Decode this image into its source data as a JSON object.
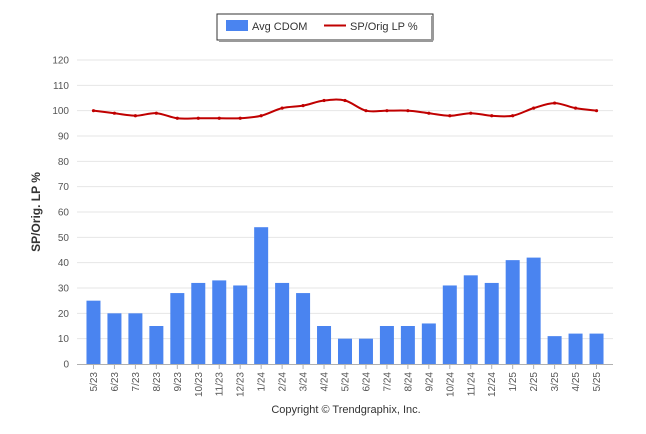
{
  "chart_data": {
    "type": "bar",
    "categories": [
      "5/23",
      "6/23",
      "7/23",
      "8/23",
      "9/23",
      "10/23",
      "11/23",
      "12/23",
      "1/24",
      "2/24",
      "3/24",
      "4/24",
      "5/24",
      "6/24",
      "7/24",
      "8/24",
      "9/24",
      "10/24",
      "11/24",
      "12/24",
      "1/25",
      "2/25",
      "3/25",
      "4/25",
      "5/25"
    ],
    "series": [
      {
        "name": "Avg CDOM",
        "type": "bar",
        "color": "#4a84f0",
        "values": [
          25,
          20,
          20,
          15,
          28,
          32,
          33,
          31,
          54,
          32,
          28,
          15,
          10,
          10,
          15,
          15,
          16,
          31,
          35,
          32,
          41,
          42,
          11,
          12,
          12
        ]
      },
      {
        "name": "SP/Orig LP %",
        "type": "line",
        "color": "#c00000",
        "values": [
          100,
          99,
          98,
          99,
          97,
          97,
          97,
          97,
          98,
          101,
          102,
          104,
          104,
          100,
          100,
          100,
          99,
          98,
          99,
          98,
          98,
          101,
          103,
          101,
          100
        ]
      }
    ],
    "ylabel": "SP/Orig. LP %",
    "ylim": [
      0,
      120
    ],
    "yticks": [
      0,
      10,
      20,
      30,
      40,
      50,
      60,
      70,
      80,
      90,
      100,
      110,
      120
    ],
    "grid": true,
    "legend": "top-center"
  },
  "footer": "Copyright © Trendgraphix, Inc."
}
